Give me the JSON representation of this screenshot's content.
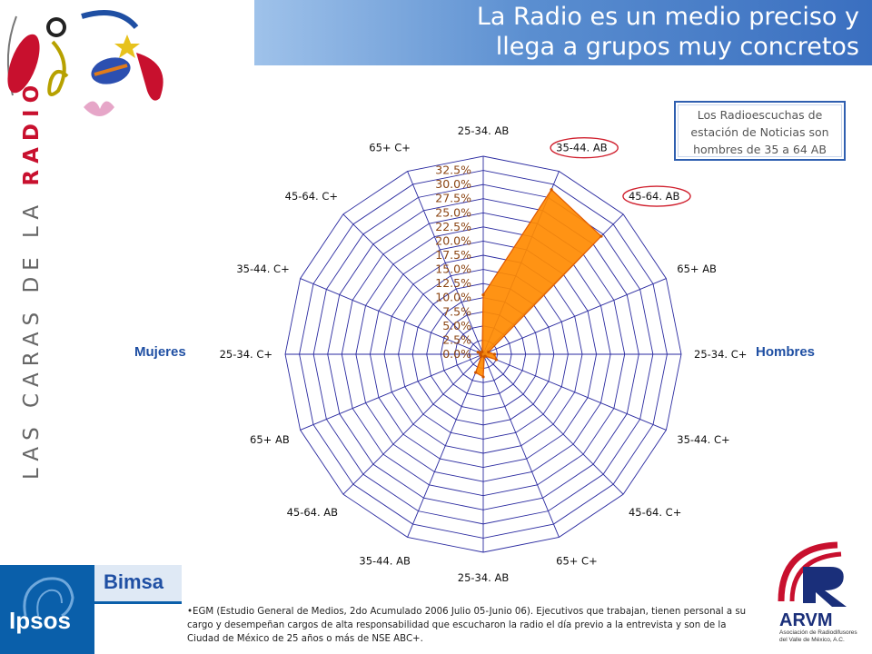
{
  "title": {
    "line1": "La Radio es un medio preciso y",
    "line2": "llega a grupos muy concretos"
  },
  "callout": {
    "line1": "Los Radioescuchas de",
    "line2": "estación de Noticias son",
    "line3": "hombres de 35 a 64 AB"
  },
  "side_brand": {
    "prefix": "LAS CARAS DE LA ",
    "highlight": "RADIO"
  },
  "labels": {
    "mujeres": "Mujeres",
    "hombres": "Hombres"
  },
  "footnote": "•EGM (Estudio General de Medios, 2do Acumulado 2006 Julio 05-Junio 06). Ejecutivos que trabajan, tienen personal a su cargo y desempeñan cargos de alta responsabilidad que escucharon la radio el día previo a la entrevista y son de la Ciudad de México de 25 años o más de NSE ABC+.",
  "logos": {
    "ipsos": "Ipsos",
    "bimsa": "Bimsa",
    "arvm": "ARVM",
    "arvm_sub": "Asociación de Radiodifusores del Valle de México, A.C."
  },
  "colors": {
    "title_bar": "#4f86cc",
    "series_fill": "#ff8a00",
    "highlight_circle": "#d0202e",
    "grid": "#2a2aa0",
    "tick_labels": "#8b4513"
  },
  "chart_data": {
    "type": "radar",
    "categories": [
      "25-34. AB",
      "35-44. AB",
      "45-64. AB",
      "65+ AB",
      "25-34. C+",
      "35-44. C+",
      "45-64. C+",
      "65+ C+",
      "25-34. AB",
      "35-44. AB",
      "45-64. AB",
      "65+ AB",
      "25-34. C+",
      "35-44. C+",
      "45-64. C+",
      "65+ C+"
    ],
    "halves": {
      "right": "Hombres",
      "left": "Mujeres"
    },
    "tick_labels": [
      "0.0%",
      "2.5%",
      "5.0%",
      "7.5%",
      "10.0%",
      "12.5%",
      "15.0%",
      "17.5%",
      "20.0%",
      "22.5%",
      "25.0%",
      "27.5%",
      "30.0%",
      "32.5%"
    ],
    "rmax": 35,
    "series": [
      {
        "values": [
          10.5,
          31.5,
          29.5,
          1.0,
          2.0,
          2.5,
          0.5,
          0.5,
          4.0,
          3.5,
          0.5,
          0.5,
          0.5,
          1.0,
          0.5,
          0.5
        ]
      }
    ],
    "highlighted": [
      "35-44. AB",
      "45-64. AB"
    ],
    "legend": "none",
    "grid": true
  }
}
